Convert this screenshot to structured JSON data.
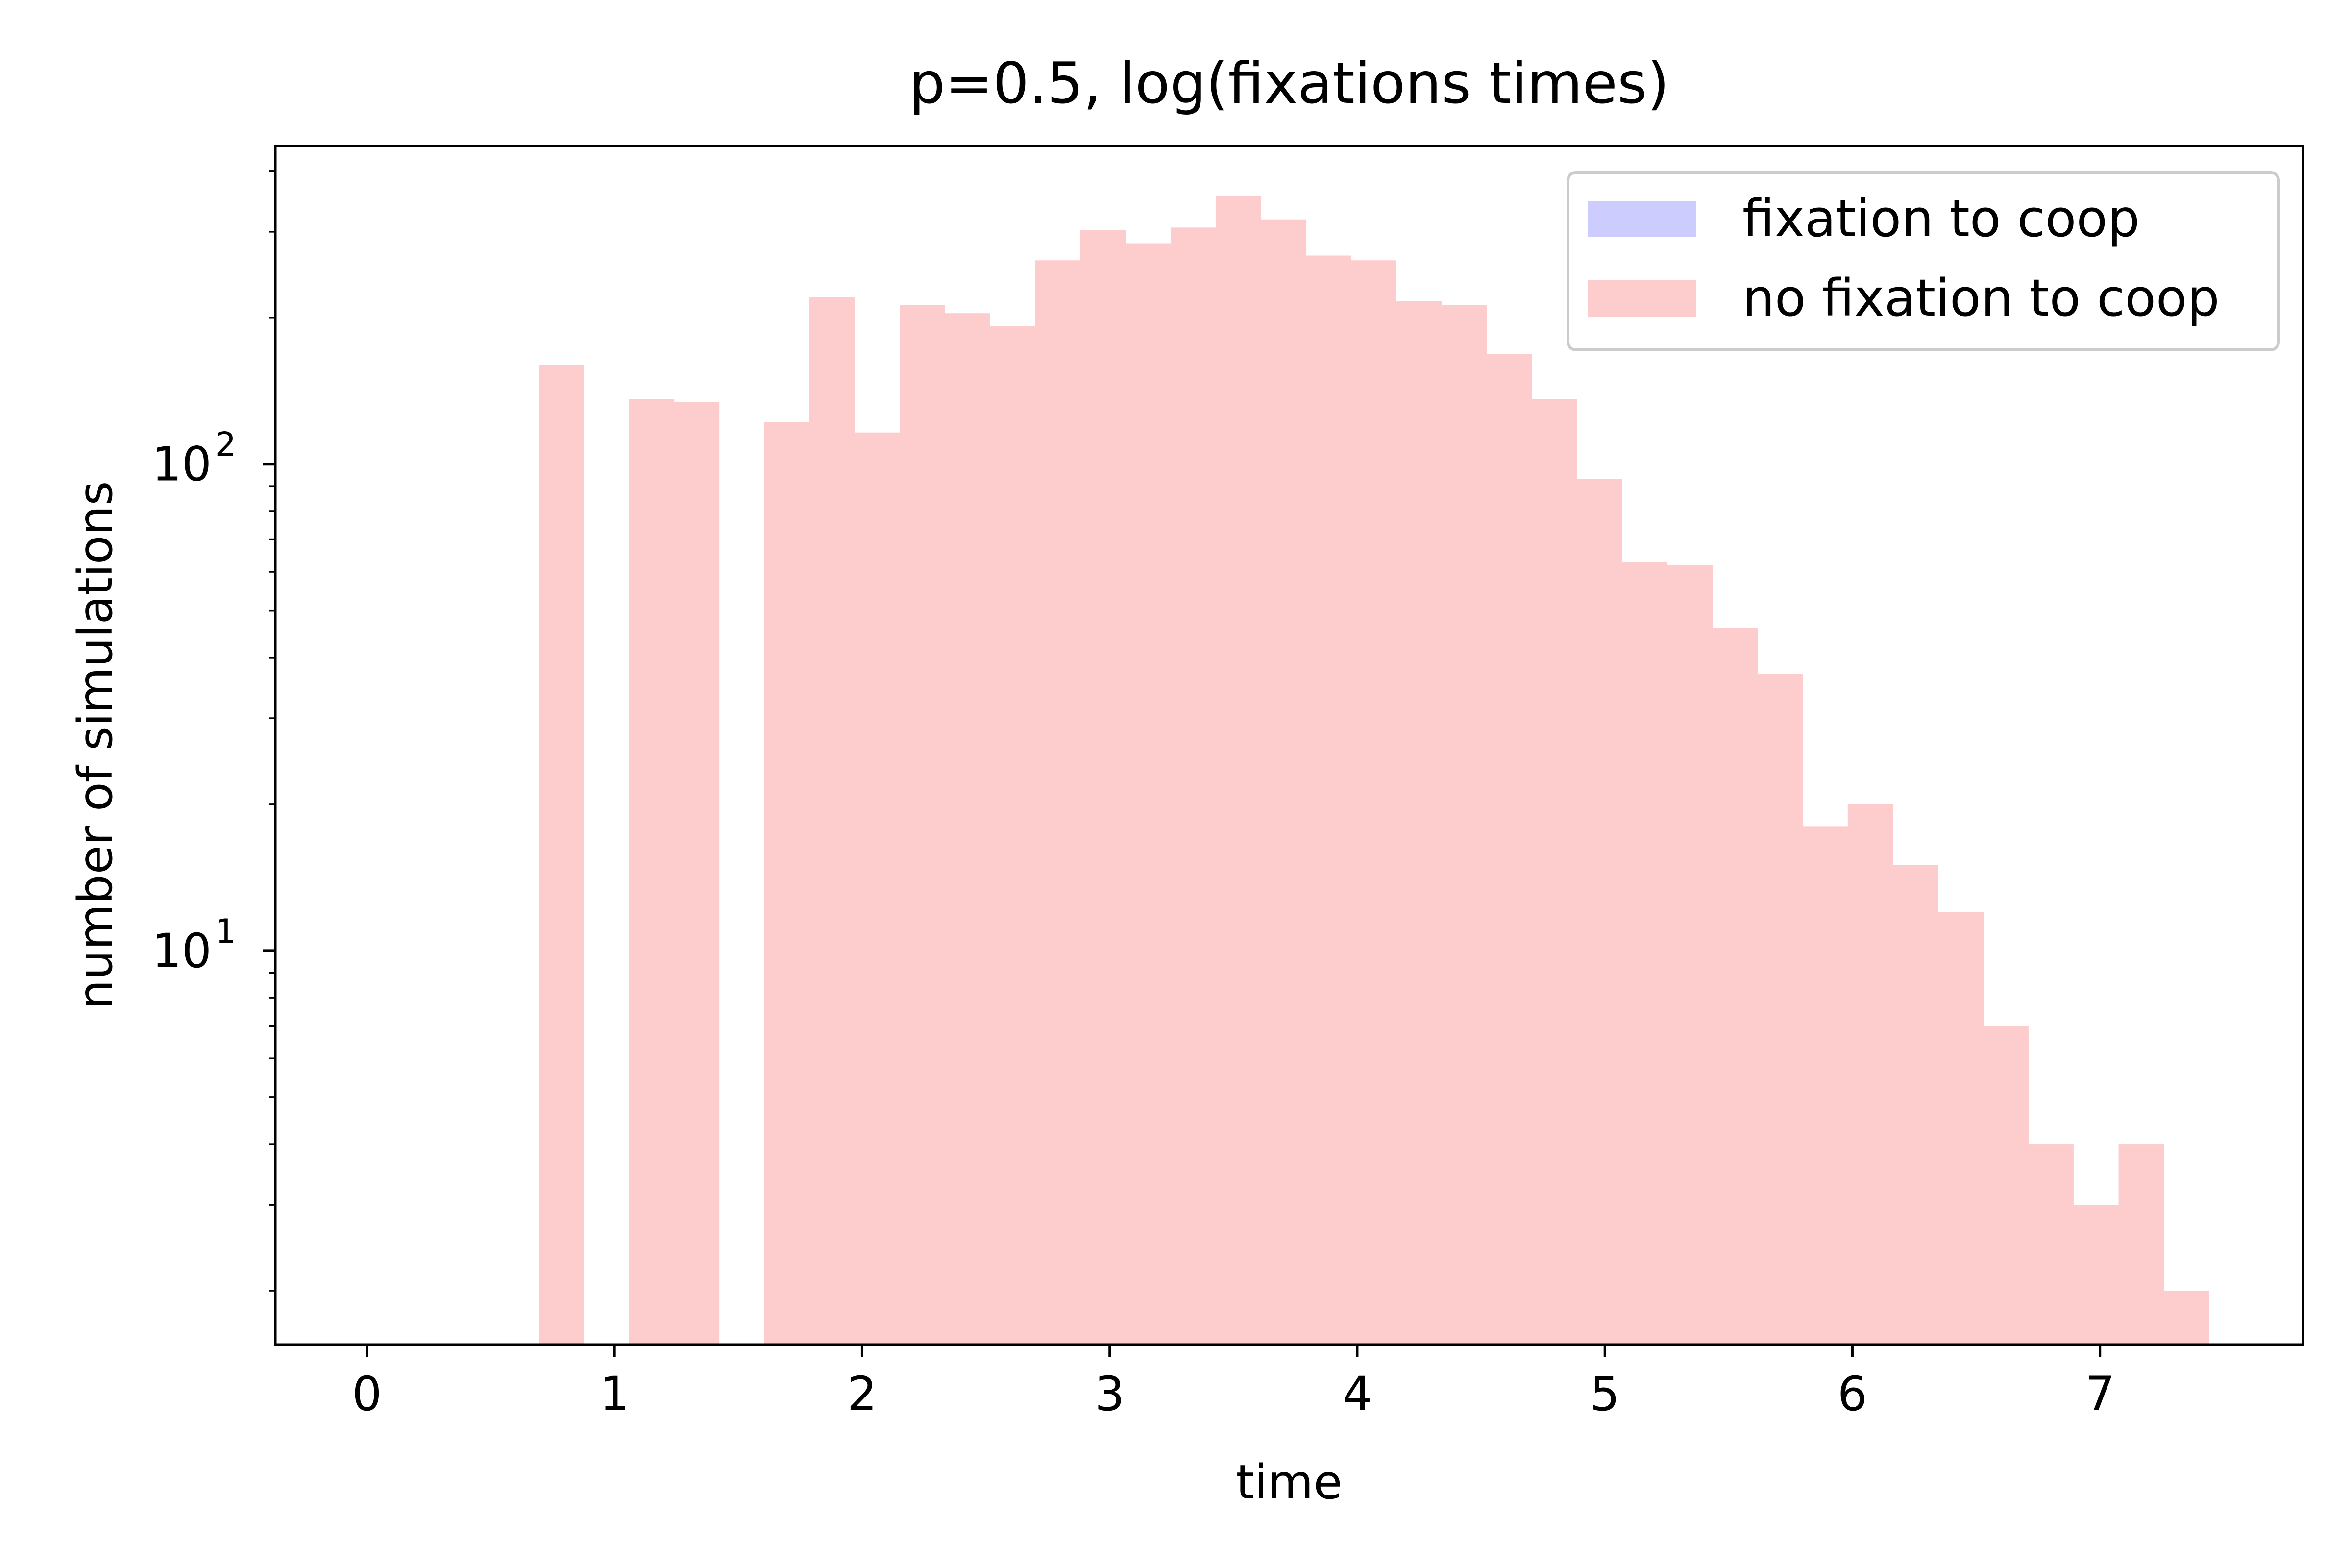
{
  "chart_data": {
    "type": "bar",
    "title": "p=0.5, log(fixations times)",
    "xlabel": "time",
    "ylabel": "number of simulations",
    "x_scale": "linear",
    "y_scale": "log",
    "xlim": [
      -0.37,
      7.82
    ],
    "ylim": [
      1.55,
      450
    ],
    "xticks": [
      0,
      1,
      2,
      3,
      4,
      5,
      6,
      7
    ],
    "yticks_major": [
      {
        "value": 10,
        "base": "10",
        "exp": "1"
      },
      {
        "value": 100,
        "base": "10",
        "exp": "2"
      }
    ],
    "grid": false,
    "legend": {
      "position": "upper right",
      "entries": [
        {
          "label": "fixation to coop",
          "color": "#ccccff"
        },
        {
          "label": "no fixation to coop",
          "color": "#fdcccc"
        }
      ]
    },
    "bin_width": 0.1823,
    "series": [
      {
        "name": "fixation to coop",
        "color": "#ccccff",
        "bins": []
      },
      {
        "name": "no fixation to coop",
        "color": "#fdcccc",
        "bins": [
          {
            "x0": 0.693,
            "value": 160
          },
          {
            "x0": 0.876,
            "value": 0
          },
          {
            "x0": 1.058,
            "value": 136
          },
          {
            "x0": 1.24,
            "value": 134
          },
          {
            "x0": 1.423,
            "value": 0
          },
          {
            "x0": 1.605,
            "value": 122
          },
          {
            "x0": 1.787,
            "value": 220
          },
          {
            "x0": 1.97,
            "value": 116
          },
          {
            "x0": 2.152,
            "value": 212
          },
          {
            "x0": 2.334,
            "value": 204
          },
          {
            "x0": 2.517,
            "value": 192
          },
          {
            "x0": 2.699,
            "value": 262
          },
          {
            "x0": 2.881,
            "value": 302
          },
          {
            "x0": 3.064,
            "value": 284
          },
          {
            "x0": 3.246,
            "value": 306
          },
          {
            "x0": 3.428,
            "value": 356
          },
          {
            "x0": 3.611,
            "value": 318
          },
          {
            "x0": 3.793,
            "value": 268
          },
          {
            "x0": 3.975,
            "value": 262
          },
          {
            "x0": 4.158,
            "value": 216
          },
          {
            "x0": 4.34,
            "value": 212
          },
          {
            "x0": 4.522,
            "value": 168
          },
          {
            "x0": 4.705,
            "value": 136
          },
          {
            "x0": 4.887,
            "value": 93
          },
          {
            "x0": 5.069,
            "value": 63
          },
          {
            "x0": 5.252,
            "value": 62
          },
          {
            "x0": 5.434,
            "value": 46
          },
          {
            "x0": 5.616,
            "value": 37
          },
          {
            "x0": 5.799,
            "value": 18
          },
          {
            "x0": 5.981,
            "value": 20
          },
          {
            "x0": 6.163,
            "value": 15
          },
          {
            "x0": 6.346,
            "value": 12
          },
          {
            "x0": 6.528,
            "value": 7
          },
          {
            "x0": 6.71,
            "value": 4
          },
          {
            "x0": 6.893,
            "value": 3
          },
          {
            "x0": 7.075,
            "value": 4
          },
          {
            "x0": 7.257,
            "value": 2
          }
        ]
      }
    ]
  }
}
